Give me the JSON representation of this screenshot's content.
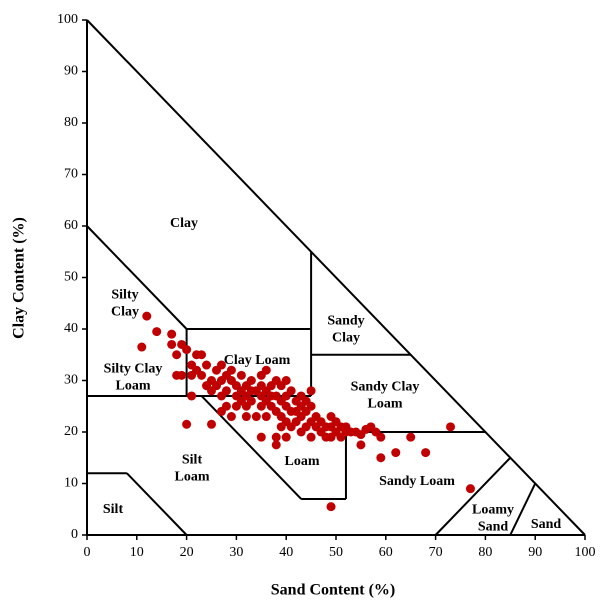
{
  "chart_data": {
    "type": "scatter",
    "xlabel": "Sand Content (%)",
    "ylabel": "Clay Content (%)",
    "xlim": [
      0,
      100
    ],
    "ylim": [
      0,
      100
    ],
    "xticks": [
      0,
      10,
      20,
      30,
      40,
      50,
      60,
      70,
      80,
      90,
      100
    ],
    "yticks": [
      0,
      10,
      20,
      30,
      40,
      50,
      60,
      70,
      80,
      90,
      100
    ],
    "color": "#c00000",
    "boundaries": [
      [
        0,
        0,
        100,
        0
      ],
      [
        0,
        0,
        0,
        100
      ],
      [
        0,
        100,
        100,
        0
      ],
      [
        0,
        60,
        20,
        40
      ],
      [
        20,
        40,
        45,
        40
      ],
      [
        20,
        40,
        20,
        27
      ],
      [
        45,
        55,
        45,
        27
      ],
      [
        45,
        35,
        65,
        35
      ],
      [
        0,
        27,
        45,
        27
      ],
      [
        23,
        27,
        43,
        7
      ],
      [
        43,
        7,
        52,
        7
      ],
      [
        52,
        7,
        52,
        20
      ],
      [
        52,
        20,
        80,
        20
      ],
      [
        0,
        12,
        8,
        12
      ],
      [
        8,
        12,
        20,
        0
      ],
      [
        70,
        0,
        85,
        15
      ],
      [
        85,
        0,
        90,
        10
      ]
    ],
    "regions": [
      [
        "Clay"
      ],
      [
        "Silty",
        "Clay"
      ],
      [
        "Sandy",
        "Clay"
      ],
      [
        "Silty Clay",
        "Loam"
      ],
      [
        "Clay Loam"
      ],
      [
        "Sandy Clay",
        "Loam"
      ],
      [
        "Silt",
        "Loam"
      ],
      [
        "Loam"
      ],
      [
        "Sandy Loam"
      ],
      [
        "Silt"
      ],
      [
        "Loamy",
        "Sand"
      ],
      [
        "Sand"
      ]
    ],
    "x": [
      12,
      11,
      14,
      17,
      17,
      18,
      19,
      20,
      19,
      21,
      21,
      22,
      22,
      23,
      23,
      24,
      24,
      25,
      25,
      26,
      26,
      27,
      27,
      27,
      28,
      28,
      28,
      29,
      29,
      29,
      30,
      30,
      30,
      31,
      31,
      31,
      32,
      32,
      32,
      33,
      33,
      33,
      34,
      34,
      35,
      35,
      35,
      35,
      35,
      36,
      36,
      36,
      36,
      37,
      37,
      37,
      38,
      38,
      38,
      38,
      38,
      39,
      39,
      39,
      39,
      40,
      40,
      40,
      40,
      40,
      41,
      41,
      41,
      42,
      42,
      42,
      43,
      43,
      43,
      43,
      44,
      44,
      44,
      45,
      45,
      45,
      45,
      46,
      46,
      47,
      47,
      48,
      48,
      49,
      49,
      49,
      50,
      50,
      51,
      51,
      52,
      52,
      53,
      54,
      55,
      56,
      57,
      55,
      58,
      59,
      59,
      62,
      65,
      68,
      73,
      77,
      49,
      20,
      25,
      21,
      18,
      27,
      32
    ],
    "values": [
      42.5,
      36.5,
      39.5,
      39,
      37,
      35,
      37,
      36,
      31,
      33,
      31,
      35,
      32,
      35,
      31,
      29,
      33,
      30,
      28,
      32,
      29,
      33,
      30,
      27,
      31,
      28,
      25,
      32,
      30,
      23,
      29,
      27,
      25,
      31,
      28,
      26,
      29,
      27,
      25,
      30,
      28,
      26,
      28,
      23,
      31,
      29,
      27,
      25,
      19,
      32,
      28,
      26,
      23,
      29,
      27,
      25,
      30,
      27,
      24,
      19,
      17.5,
      29,
      26,
      23,
      21,
      30,
      27,
      25,
      22,
      19,
      28,
      24,
      21,
      26,
      24,
      22,
      27,
      25,
      23,
      20,
      26,
      24,
      21,
      28,
      25,
      22,
      19,
      23,
      21,
      22,
      20,
      21,
      19,
      23,
      21,
      19,
      22,
      20,
      21,
      19,
      21,
      20,
      20,
      20,
      19.5,
      20.5,
      21,
      17.5,
      20,
      19,
      15,
      16,
      19,
      16,
      21,
      9,
      5.5,
      21.5,
      21.5,
      27,
      31,
      24,
      23
    ]
  }
}
